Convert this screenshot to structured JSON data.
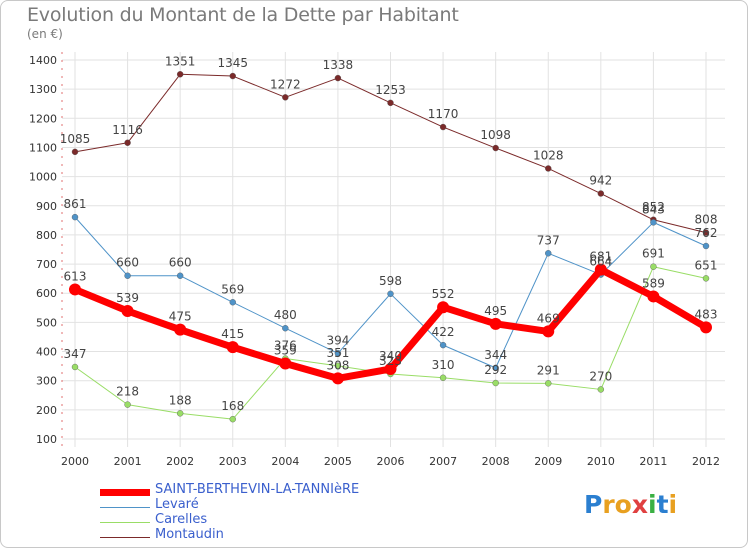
{
  "title": "Evolution du Montant de la Dette par Habitant",
  "unit": "(en €)",
  "chart_data": {
    "type": "line",
    "title": "Evolution du Montant de la Dette par Habitant",
    "ylabel": "(en €)",
    "ylim": [
      100,
      1400
    ],
    "yticks": [
      100,
      200,
      300,
      400,
      500,
      600,
      700,
      800,
      900,
      1000,
      1100,
      1200,
      1300,
      1400
    ],
    "x": [
      "2000",
      "2001",
      "2002",
      "2003",
      "2004",
      "2005",
      "2006",
      "2007",
      "2008",
      "2009",
      "2010",
      "2011",
      "2012"
    ],
    "grid": true,
    "legend": "bottom-left",
    "series": [
      {
        "name": "SAINT-BERTHEVIN-LA-TANNIèRE",
        "color": "#ff0000",
        "values": [
          613,
          539,
          475,
          415,
          359,
          308,
          340,
          552,
          495,
          469,
          681,
          589,
          483
        ]
      },
      {
        "name": "Levaré",
        "color": "#4f93c8",
        "values": [
          861,
          660,
          660,
          569,
          480,
          394,
          598,
          422,
          344,
          737,
          664,
          843,
          762
        ]
      },
      {
        "name": "Carelles",
        "color": "#99dd66",
        "values": [
          347,
          218,
          188,
          168,
          376,
          351,
          323,
          310,
          292,
          291,
          270,
          691,
          651
        ]
      },
      {
        "name": "Montaudin",
        "color": "#7b2a2a",
        "values": [
          1085,
          1116,
          1351,
          1345,
          1272,
          1338,
          1253,
          1170,
          1098,
          1028,
          942,
          852,
          808
        ]
      }
    ]
  },
  "logo": {
    "letters": [
      "P",
      "r",
      "o",
      "x",
      "i",
      "t",
      "i"
    ],
    "colors": [
      "#2b7fd0",
      "#e8a020",
      "#e8a020",
      "#e04040",
      "#3ab043",
      "#2b7fd0",
      "#e8a020"
    ]
  }
}
